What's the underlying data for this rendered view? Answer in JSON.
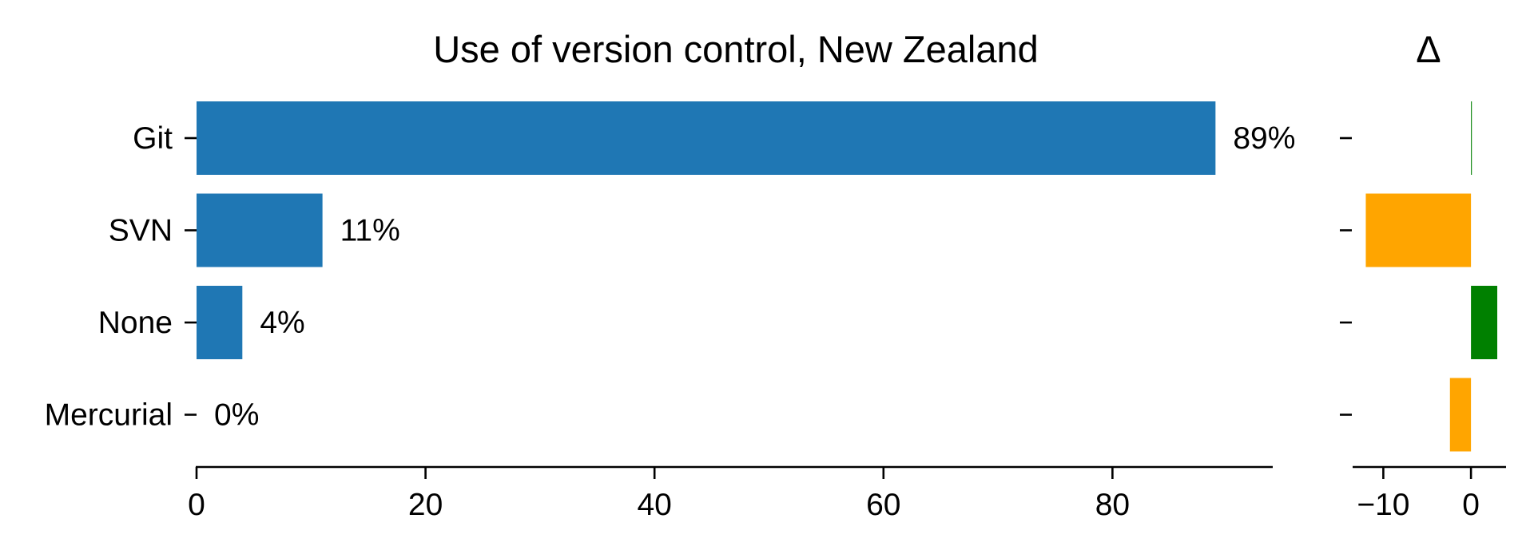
{
  "chart_data": [
    {
      "type": "bar",
      "orientation": "horizontal",
      "title": "Use of version control, New Zealand",
      "xlabel": "",
      "ylabel": "",
      "categories": [
        "Git",
        "SVN",
        "None",
        "Mercurial"
      ],
      "values": [
        89,
        11,
        4,
        0
      ],
      "data_labels": [
        "89%",
        "11%",
        "4%",
        "0%"
      ],
      "xlim": [
        0,
        94
      ],
      "xticks": [
        0,
        20,
        40,
        60,
        80
      ],
      "grid": false,
      "colors": {
        "bar": "#1f77b4"
      }
    },
    {
      "type": "bar",
      "orientation": "horizontal",
      "title": "Δ",
      "xlabel": "",
      "ylabel": "",
      "categories": [
        "Git",
        "SVN",
        "None",
        "Mercurial"
      ],
      "values": [
        0.1,
        -12,
        3,
        -2.4
      ],
      "xlim": [
        -13.5,
        4
      ],
      "xticks": [
        -10,
        0
      ],
      "xtick_labels": [
        "−10",
        "0"
      ],
      "grid": false,
      "colors": {
        "increase": "#008000",
        "decrease": "#ffa500"
      }
    }
  ]
}
